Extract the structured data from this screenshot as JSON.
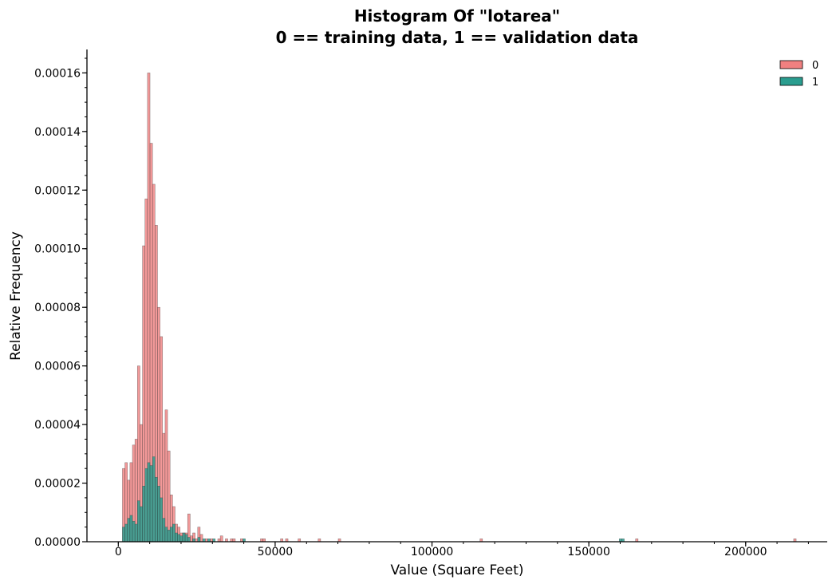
{
  "chart_data": {
    "type": "bar",
    "title_line1": "Histogram Of \"lotarea\"",
    "title_line2": "0 == training data, 1 == validation data",
    "xlabel": "Value (Square Feet)",
    "ylabel": "Relative Frequency",
    "xlim": [
      -10000,
      226000
    ],
    "ylim": [
      0,
      0.000168
    ],
    "x_ticks": [
      0,
      50000,
      100000,
      150000,
      200000
    ],
    "x_tick_labels": [
      "0",
      "50000",
      "100000",
      "150000",
      "200000"
    ],
    "y_ticks": [
      0,
      2e-05,
      4e-05,
      6e-05,
      8e-05,
      0.0001,
      0.00012,
      0.00014,
      0.00016
    ],
    "y_tick_labels": [
      "0.00000",
      "0.00002",
      "0.00004",
      "0.00006",
      "0.00008",
      "0.00010",
      "0.00012",
      "0.00014",
      "0.00016"
    ],
    "grid": false,
    "legend_position": "top-right",
    "bin_width": 800,
    "series": [
      {
        "name": "0",
        "color": "#f08080",
        "bins": [
          [
            1300,
            2.5e-05
          ],
          [
            2100,
            2.7e-05
          ],
          [
            2900,
            2.1e-05
          ],
          [
            3700,
            2.7e-05
          ],
          [
            4500,
            3.3e-05
          ],
          [
            5300,
            3.5e-05
          ],
          [
            6100,
            6e-05
          ],
          [
            6900,
            4e-05
          ],
          [
            7700,
            0.000101
          ],
          [
            8500,
            0.000117
          ],
          [
            9300,
            0.00016
          ],
          [
            10100,
            0.000136
          ],
          [
            10900,
            0.000122
          ],
          [
            11700,
            0.000108
          ],
          [
            12500,
            8e-05
          ],
          [
            13300,
            7e-05
          ],
          [
            14100,
            3.7e-05
          ],
          [
            14900,
            4.5e-05
          ],
          [
            15700,
            3.1e-05
          ],
          [
            16500,
            1.6e-05
          ],
          [
            17300,
            1.2e-05
          ],
          [
            18100,
            6e-06
          ],
          [
            18900,
            5e-06
          ],
          [
            19700,
            3e-06
          ],
          [
            20500,
            3e-06
          ],
          [
            21300,
            3e-06
          ],
          [
            22100,
            9.5e-06
          ],
          [
            22900,
            2e-06
          ],
          [
            23700,
            3e-06
          ],
          [
            24500,
            1e-06
          ],
          [
            25300,
            5e-06
          ],
          [
            26100,
            2.5e-06
          ],
          [
            27700,
            1e-06
          ],
          [
            29300,
            1e-06
          ],
          [
            31700,
            1e-06
          ],
          [
            32500,
            2e-06
          ],
          [
            34100,
            1e-06
          ],
          [
            35700,
            1e-06
          ],
          [
            36500,
            1e-06
          ],
          [
            38900,
            1e-06
          ],
          [
            45300,
            1e-06
          ],
          [
            46100,
            1e-06
          ],
          [
            51700,
            1e-06
          ],
          [
            53300,
            1e-06
          ],
          [
            57300,
            1e-06
          ],
          [
            63700,
            1e-06
          ],
          [
            70100,
            1e-06
          ],
          [
            115300,
            1e-06
          ],
          [
            164900,
            1e-06
          ],
          [
            215300,
            1e-06
          ]
        ]
      },
      {
        "name": "1",
        "color": "#2a9d8f",
        "bins": [
          [
            1300,
            5e-06
          ],
          [
            2100,
            6e-06
          ],
          [
            2900,
            8e-06
          ],
          [
            3700,
            9e-06
          ],
          [
            4500,
            7e-06
          ],
          [
            5300,
            6e-06
          ],
          [
            6100,
            1.4e-05
          ],
          [
            6900,
            1.2e-05
          ],
          [
            7700,
            1.9e-05
          ],
          [
            8500,
            2.5e-05
          ],
          [
            9300,
            2.7e-05
          ],
          [
            10100,
            2.6e-05
          ],
          [
            10900,
            2.9e-05
          ],
          [
            11700,
            2.2e-05
          ],
          [
            12500,
            1.9e-05
          ],
          [
            13300,
            1.5e-05
          ],
          [
            14100,
            8e-06
          ],
          [
            14900,
            5e-06
          ],
          [
            15700,
            4e-06
          ],
          [
            16500,
            5e-06
          ],
          [
            17300,
            6e-06
          ],
          [
            18100,
            3e-06
          ],
          [
            18900,
            2.5e-06
          ],
          [
            19700,
            2e-06
          ],
          [
            20500,
            3e-06
          ],
          [
            21300,
            2.5e-06
          ],
          [
            22100,
            1.5e-06
          ],
          [
            23700,
            1e-06
          ],
          [
            25300,
            1.5e-06
          ],
          [
            26900,
            1e-06
          ],
          [
            28500,
            1e-06
          ],
          [
            30100,
            1e-06
          ],
          [
            39700,
            1e-06
          ],
          [
            159700,
            1e-06
          ],
          [
            160500,
            1e-06
          ]
        ]
      }
    ]
  }
}
